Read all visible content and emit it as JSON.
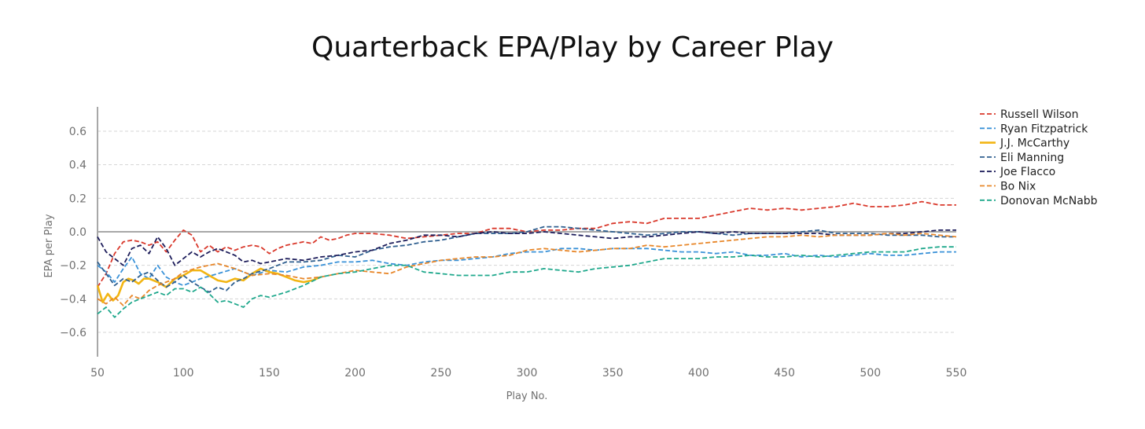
{
  "chart_data": {
    "type": "line",
    "title": "Quarterback EPA/Play by Career Play",
    "xlabel": "Play No.",
    "ylabel": "EPA per Play",
    "xlim": [
      50,
      550
    ],
    "ylim": [
      -0.75,
      0.75
    ],
    "x_ticks": [
      50,
      100,
      150,
      200,
      250,
      300,
      350,
      400,
      450,
      500,
      550
    ],
    "y_ticks": [
      -0.6,
      -0.4,
      -0.2,
      0.0,
      0.2,
      0.4,
      0.6
    ],
    "y_tick_labels": [
      "−0.6",
      "−0.4",
      "−0.2",
      "0.0",
      "0.2",
      "0.4",
      "0.6"
    ],
    "grid": "horizontal dashed",
    "legend_position": "right",
    "series": [
      {
        "name": "Russell Wilson",
        "color": "#d9382b",
        "dashed": true,
        "x": [
          50,
          55,
          60,
          65,
          70,
          75,
          80,
          85,
          90,
          95,
          100,
          105,
          110,
          115,
          120,
          125,
          130,
          135,
          140,
          145,
          150,
          155,
          160,
          165,
          170,
          175,
          180,
          185,
          190,
          195,
          200,
          210,
          220,
          230,
          240,
          250,
          260,
          270,
          280,
          290,
          300,
          310,
          320,
          330,
          340,
          350,
          360,
          370,
          380,
          390,
          400,
          410,
          420,
          430,
          440,
          450,
          460,
          470,
          480,
          490,
          500,
          510,
          520,
          530,
          540,
          550
        ],
        "values": [
          -0.33,
          -0.25,
          -0.13,
          -0.06,
          -0.05,
          -0.06,
          -0.08,
          -0.06,
          -0.12,
          -0.05,
          0.01,
          -0.02,
          -0.12,
          -0.08,
          -0.12,
          -0.09,
          -0.11,
          -0.09,
          -0.08,
          -0.09,
          -0.13,
          -0.1,
          -0.08,
          -0.07,
          -0.06,
          -0.07,
          -0.03,
          -0.05,
          -0.04,
          -0.02,
          -0.01,
          -0.01,
          -0.02,
          -0.04,
          -0.03,
          -0.02,
          -0.01,
          -0.01,
          0.02,
          0.02,
          0.0,
          0.01,
          0.01,
          0.02,
          0.02,
          0.05,
          0.06,
          0.05,
          0.08,
          0.08,
          0.08,
          0.1,
          0.12,
          0.14,
          0.13,
          0.14,
          0.13,
          0.14,
          0.15,
          0.17,
          0.15,
          0.15,
          0.16,
          0.18,
          0.16,
          0.16
        ]
      },
      {
        "name": "Ryan Fitzpatrick",
        "color": "#3a92d8",
        "dashed": true,
        "x": [
          50,
          55,
          60,
          65,
          70,
          75,
          80,
          85,
          90,
          95,
          100,
          110,
          120,
          130,
          140,
          150,
          160,
          170,
          180,
          190,
          200,
          210,
          220,
          230,
          240,
          250,
          260,
          270,
          280,
          290,
          300,
          310,
          320,
          330,
          340,
          350,
          360,
          370,
          380,
          390,
          400,
          410,
          420,
          430,
          440,
          450,
          460,
          470,
          480,
          490,
          500,
          510,
          520,
          530,
          540,
          550
        ],
        "values": [
          -0.2,
          -0.24,
          -0.3,
          -0.22,
          -0.15,
          -0.25,
          -0.28,
          -0.2,
          -0.27,
          -0.3,
          -0.32,
          -0.28,
          -0.25,
          -0.22,
          -0.26,
          -0.23,
          -0.24,
          -0.21,
          -0.2,
          -0.18,
          -0.18,
          -0.17,
          -0.19,
          -0.2,
          -0.18,
          -0.17,
          -0.17,
          -0.16,
          -0.15,
          -0.13,
          -0.12,
          -0.12,
          -0.1,
          -0.1,
          -0.11,
          -0.1,
          -0.1,
          -0.1,
          -0.11,
          -0.12,
          -0.12,
          -0.13,
          -0.12,
          -0.14,
          -0.14,
          -0.13,
          -0.15,
          -0.14,
          -0.15,
          -0.14,
          -0.13,
          -0.14,
          -0.14,
          -0.13,
          -0.12,
          -0.12
        ]
      },
      {
        "name": "J.J. McCarthy",
        "color": "#f2b513",
        "dashed": false,
        "x": [
          50,
          53,
          56,
          59,
          62,
          65,
          68,
          71,
          74,
          77,
          80,
          85,
          90,
          95,
          100,
          105,
          110,
          115,
          120,
          125,
          130,
          135,
          140,
          145,
          150,
          155,
          160,
          165,
          170,
          175,
          180
        ],
        "values": [
          -0.32,
          -0.42,
          -0.37,
          -0.41,
          -0.38,
          -0.3,
          -0.28,
          -0.29,
          -0.31,
          -0.28,
          -0.28,
          -0.3,
          -0.33,
          -0.28,
          -0.26,
          -0.23,
          -0.23,
          -0.26,
          -0.29,
          -0.3,
          -0.28,
          -0.29,
          -0.25,
          -0.22,
          -0.24,
          -0.25,
          -0.27,
          -0.29,
          -0.3,
          -0.29,
          -0.27
        ]
      },
      {
        "name": "Eli Manning",
        "color": "#2f5f8f",
        "dashed": true,
        "x": [
          50,
          55,
          60,
          65,
          70,
          75,
          80,
          85,
          90,
          95,
          100,
          105,
          110,
          115,
          120,
          125,
          130,
          135,
          140,
          150,
          160,
          170,
          180,
          190,
          200,
          210,
          220,
          230,
          240,
          250,
          260,
          270,
          280,
          290,
          300,
          310,
          320,
          330,
          340,
          350,
          360,
          370,
          380,
          390,
          400,
          410,
          420,
          430,
          440,
          450,
          460,
          470,
          480,
          490,
          500,
          510,
          520,
          530,
          540,
          550
        ],
        "values": [
          -0.18,
          -0.25,
          -0.32,
          -0.28,
          -0.3,
          -0.26,
          -0.24,
          -0.29,
          -0.33,
          -0.3,
          -0.26,
          -0.3,
          -0.33,
          -0.36,
          -0.33,
          -0.35,
          -0.3,
          -0.28,
          -0.25,
          -0.22,
          -0.18,
          -0.18,
          -0.17,
          -0.14,
          -0.15,
          -0.11,
          -0.09,
          -0.08,
          -0.06,
          -0.05,
          -0.03,
          -0.01,
          -0.01,
          -0.01,
          0.0,
          0.03,
          0.03,
          0.02,
          0.01,
          0.0,
          -0.01,
          -0.02,
          -0.01,
          0.0,
          0.0,
          -0.01,
          -0.02,
          -0.01,
          -0.01,
          -0.01,
          0.0,
          0.01,
          -0.01,
          -0.01,
          -0.01,
          -0.02,
          -0.02,
          -0.02,
          -0.03,
          -0.03
        ]
      },
      {
        "name": "Joe Flacco",
        "color": "#1c1c5a",
        "dashed": true,
        "x": [
          50,
          55,
          60,
          65,
          70,
          75,
          80,
          85,
          90,
          95,
          100,
          105,
          110,
          115,
          120,
          125,
          130,
          135,
          140,
          145,
          150,
          160,
          170,
          180,
          190,
          200,
          210,
          220,
          230,
          240,
          250,
          260,
          270,
          280,
          290,
          300,
          310,
          320,
          330,
          340,
          350,
          360,
          370,
          380,
          390,
          400,
          410,
          420,
          430,
          440,
          450,
          460,
          470,
          480,
          490,
          500,
          510,
          520,
          530,
          540,
          550
        ],
        "values": [
          -0.03,
          -0.12,
          -0.16,
          -0.2,
          -0.1,
          -0.08,
          -0.13,
          -0.03,
          -0.1,
          -0.2,
          -0.16,
          -0.12,
          -0.15,
          -0.12,
          -0.1,
          -0.12,
          -0.14,
          -0.18,
          -0.17,
          -0.19,
          -0.18,
          -0.16,
          -0.17,
          -0.15,
          -0.14,
          -0.12,
          -0.11,
          -0.07,
          -0.05,
          -0.02,
          -0.02,
          -0.03,
          -0.01,
          0.0,
          -0.01,
          -0.01,
          0.0,
          -0.01,
          -0.02,
          -0.03,
          -0.04,
          -0.03,
          -0.03,
          -0.02,
          -0.01,
          0.0,
          -0.01,
          0.0,
          -0.01,
          -0.01,
          -0.01,
          -0.01,
          -0.01,
          -0.02,
          -0.02,
          -0.02,
          -0.01,
          -0.01,
          0.0,
          0.01,
          0.01
        ]
      },
      {
        "name": "Bo Nix",
        "color": "#e8872a",
        "dashed": true,
        "x": [
          50,
          55,
          60,
          65,
          70,
          75,
          80,
          85,
          90,
          95,
          100,
          110,
          120,
          130,
          140,
          150,
          160,
          170,
          180,
          190,
          200,
          210,
          220,
          230,
          240,
          250,
          260,
          270,
          280,
          290,
          300,
          310,
          320,
          330,
          340,
          350,
          360,
          370,
          380,
          390,
          400,
          410,
          420,
          430,
          440,
          450,
          460,
          470,
          480,
          490,
          500,
          510,
          520,
          530,
          540,
          550
        ],
        "values": [
          -0.4,
          -0.43,
          -0.39,
          -0.44,
          -0.38,
          -0.4,
          -0.35,
          -0.32,
          -0.3,
          -0.28,
          -0.24,
          -0.21,
          -0.19,
          -0.22,
          -0.26,
          -0.25,
          -0.26,
          -0.28,
          -0.27,
          -0.25,
          -0.23,
          -0.24,
          -0.25,
          -0.21,
          -0.19,
          -0.17,
          -0.16,
          -0.15,
          -0.15,
          -0.14,
          -0.11,
          -0.1,
          -0.11,
          -0.12,
          -0.11,
          -0.1,
          -0.1,
          -0.08,
          -0.09,
          -0.08,
          -0.07,
          -0.06,
          -0.05,
          -0.04,
          -0.03,
          -0.03,
          -0.02,
          -0.03,
          -0.02,
          -0.02,
          -0.02,
          -0.01,
          -0.02,
          -0.01,
          -0.02,
          -0.03
        ]
      },
      {
        "name": "Donovan McNabb",
        "color": "#1fa88c",
        "dashed": true,
        "x": [
          50,
          55,
          60,
          65,
          70,
          75,
          80,
          85,
          90,
          95,
          100,
          105,
          110,
          115,
          120,
          125,
          130,
          135,
          140,
          145,
          150,
          160,
          170,
          180,
          190,
          200,
          210,
          220,
          230,
          240,
          250,
          260,
          270,
          280,
          290,
          300,
          310,
          320,
          330,
          340,
          350,
          360,
          370,
          380,
          390,
          400,
          410,
          420,
          430,
          440,
          450,
          460,
          470,
          480,
          490,
          500,
          510,
          520,
          530,
          540,
          550
        ],
        "values": [
          -0.49,
          -0.45,
          -0.51,
          -0.46,
          -0.42,
          -0.4,
          -0.38,
          -0.36,
          -0.38,
          -0.34,
          -0.34,
          -0.36,
          -0.33,
          -0.37,
          -0.42,
          -0.41,
          -0.43,
          -0.45,
          -0.4,
          -0.38,
          -0.39,
          -0.36,
          -0.32,
          -0.27,
          -0.25,
          -0.24,
          -0.22,
          -0.2,
          -0.2,
          -0.24,
          -0.25,
          -0.26,
          -0.26,
          -0.26,
          -0.24,
          -0.24,
          -0.22,
          -0.23,
          -0.24,
          -0.22,
          -0.21,
          -0.2,
          -0.18,
          -0.16,
          -0.16,
          -0.16,
          -0.15,
          -0.15,
          -0.14,
          -0.15,
          -0.15,
          -0.14,
          -0.15,
          -0.14,
          -0.13,
          -0.12,
          -0.12,
          -0.12,
          -0.1,
          -0.09,
          -0.09
        ]
      }
    ]
  }
}
